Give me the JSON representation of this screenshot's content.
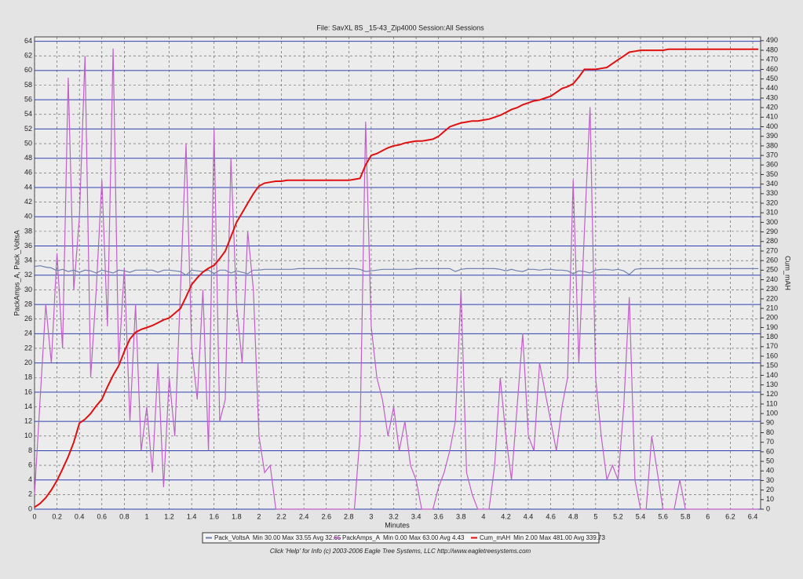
{
  "chart_data": {
    "type": "line",
    "title": "File: SavXL 8S _15-43_Zip4000   Session:All Sessions",
    "x_label": "Minutes",
    "y_label": "PackAmps_A, Pack_VoltsA",
    "y2_label": "Cum_mAH",
    "footer": "Click 'Help' for Info  (c) 2003-2006 Eagle Tree Systems, LLC      http://www.eagletreesystems.com",
    "xlim": [
      0,
      6.47
    ],
    "ylim": [
      0,
      64.6
    ],
    "y2lim": [
      0,
      494
    ],
    "grid": true,
    "xticks": [
      0,
      0.2,
      0.4,
      0.6,
      0.8,
      1,
      1.2,
      1.4,
      1.6,
      1.8,
      2,
      2.2,
      2.4,
      2.6,
      2.8,
      3,
      3.2,
      3.4,
      3.6,
      3.8,
      4,
      4.2,
      4.4,
      4.6,
      4.8,
      5,
      5.2,
      5.4,
      5.6,
      5.8,
      6,
      6.2,
      6.4
    ],
    "yticks": [
      0,
      2,
      4,
      6,
      8,
      10,
      12,
      14,
      16,
      18,
      20,
      22,
      24,
      26,
      28,
      30,
      32,
      34,
      36,
      38,
      40,
      42,
      44,
      46,
      48,
      50,
      52,
      54,
      56,
      58,
      60,
      62,
      64
    ],
    "y2ticks": [
      0,
      10,
      20,
      30,
      40,
      50,
      60,
      70,
      80,
      90,
      100,
      110,
      120,
      130,
      140,
      150,
      160,
      170,
      180,
      190,
      200,
      210,
      220,
      230,
      240,
      250,
      260,
      270,
      280,
      290,
      300,
      310,
      320,
      330,
      340,
      350,
      360,
      370,
      380,
      390,
      400,
      410,
      420,
      430,
      440,
      450,
      460,
      470,
      480,
      490
    ],
    "x": [
      0,
      0.05,
      0.1,
      0.15,
      0.2,
      0.25,
      0.3,
      0.35,
      0.4,
      0.45,
      0.5,
      0.55,
      0.6,
      0.65,
      0.7,
      0.75,
      0.8,
      0.85,
      0.9,
      0.95,
      1,
      1.05,
      1.1,
      1.15,
      1.2,
      1.25,
      1.3,
      1.35,
      1.4,
      1.45,
      1.5,
      1.55,
      1.6,
      1.65,
      1.7,
      1.75,
      1.8,
      1.85,
      1.9,
      1.95,
      2,
      2.05,
      2.1,
      2.15,
      2.2,
      2.25,
      2.3,
      2.35,
      2.4,
      2.45,
      2.5,
      2.55,
      2.6,
      2.65,
      2.7,
      2.75,
      2.8,
      2.85,
      2.9,
      2.95,
      3,
      3.05,
      3.1,
      3.15,
      3.2,
      3.25,
      3.3,
      3.35,
      3.4,
      3.45,
      3.5,
      3.55,
      3.6,
      3.65,
      3.7,
      3.75,
      3.8,
      3.85,
      3.9,
      3.95,
      4,
      4.05,
      4.1,
      4.15,
      4.2,
      4.25,
      4.3,
      4.35,
      4.4,
      4.45,
      4.5,
      4.55,
      4.6,
      4.65,
      4.7,
      4.75,
      4.8,
      4.85,
      4.9,
      4.95,
      5,
      5.05,
      5.1,
      5.15,
      5.2,
      5.25,
      5.3,
      5.35,
      5.4,
      5.45,
      5.5,
      5.55,
      5.6,
      5.65,
      5.7,
      5.75,
      5.8,
      5.85,
      5.9,
      5.95,
      6,
      6.05,
      6.1,
      6.15,
      6.2,
      6.25,
      6.3,
      6.35,
      6.4,
      6.45
    ],
    "series": [
      {
        "name": "Pack_VoltsA",
        "stats": "Min 30.00 Max 33.55 Avg 32.65",
        "color": "#7080b0",
        "axis": "y",
        "values": [
          33.2,
          33.3,
          33.1,
          33.0,
          32.6,
          32.8,
          32.5,
          32.7,
          32.4,
          32.7,
          32.6,
          32.3,
          32.7,
          32.5,
          32.3,
          32.7,
          32.6,
          32.4,
          32.7,
          32.7,
          32.7,
          32.7,
          32.4,
          32.7,
          32.7,
          32.6,
          32.5,
          32.0,
          32.7,
          32.6,
          32.5,
          32.7,
          32.2,
          32.7,
          32.7,
          32.3,
          32.6,
          32.4,
          32.2,
          32.7,
          32.7,
          32.8,
          32.8,
          32.8,
          32.8,
          32.8,
          32.8,
          32.9,
          32.9,
          32.9,
          32.9,
          32.9,
          32.9,
          32.9,
          32.9,
          32.9,
          32.9,
          32.9,
          32.8,
          32.5,
          32.6,
          32.7,
          32.8,
          32.8,
          32.8,
          32.8,
          32.8,
          32.8,
          32.9,
          32.9,
          32.9,
          32.9,
          32.9,
          32.9,
          32.9,
          32.5,
          32.8,
          32.9,
          32.9,
          32.9,
          32.9,
          32.9,
          32.9,
          32.8,
          32.6,
          32.8,
          32.6,
          32.5,
          32.8,
          32.8,
          32.7,
          32.8,
          32.8,
          32.7,
          32.7,
          32.6,
          32.2,
          32.6,
          32.5,
          32.3,
          32.7,
          32.8,
          32.8,
          32.7,
          32.8,
          32.6,
          32.1,
          32.8,
          32.9,
          32.9,
          32.9,
          32.9,
          32.9,
          32.9,
          32.9,
          32.9,
          32.9,
          32.9,
          32.9,
          32.9,
          32.9,
          32.9,
          32.9,
          32.9,
          32.9,
          32.9,
          32.9,
          32.9,
          32.9,
          32.9
        ]
      },
      {
        "name": "PackAmps_A",
        "stats": "Min 0.00 Max 63.00 Avg 4.43",
        "color": "#c060c8",
        "axis": "y",
        "values": [
          2,
          15,
          28,
          20,
          35,
          22,
          59,
          30,
          40,
          62,
          18,
          30,
          45,
          25,
          63,
          20,
          33,
          12,
          28,
          8,
          14,
          5,
          20,
          3,
          18,
          10,
          30,
          50,
          22,
          15,
          30,
          8,
          52,
          12,
          15,
          48,
          28,
          20,
          38,
          30,
          10,
          5,
          6,
          0,
          0,
          0,
          0,
          0,
          0,
          0,
          0,
          0,
          0,
          0,
          0,
          0,
          0,
          0,
          10,
          53,
          25,
          18,
          15,
          10,
          14,
          8,
          12,
          6,
          4,
          0,
          0,
          0,
          3,
          5,
          8,
          12,
          30,
          5,
          2,
          0,
          0,
          0,
          6,
          18,
          10,
          4,
          14,
          24,
          10,
          8,
          20,
          16,
          12,
          8,
          14,
          18,
          45,
          20,
          38,
          55,
          18,
          10,
          4,
          6,
          4,
          14,
          29,
          4,
          0,
          0,
          10,
          5,
          0,
          0,
          0,
          4,
          0,
          0,
          0,
          0,
          0,
          0,
          0,
          0,
          0,
          0,
          0,
          0,
          0,
          0
        ]
      },
      {
        "name": "Cum_mAH",
        "stats": "Min 2.00 Max 481.00 Avg 339.73",
        "color": "#e01010",
        "axis": "y2",
        "values": [
          2,
          6,
          12,
          20,
          30,
          42,
          55,
          70,
          90,
          94,
          100,
          108,
          115,
          128,
          140,
          150,
          165,
          178,
          185,
          188,
          190,
          192,
          195,
          198,
          200,
          205,
          210,
          222,
          235,
          242,
          248,
          252,
          255,
          262,
          270,
          285,
          300,
          310,
          320,
          330,
          338,
          341,
          342,
          343,
          343,
          344,
          344,
          344,
          344,
          344,
          344,
          344,
          344,
          344,
          344,
          344,
          344,
          345,
          346,
          360,
          370,
          372,
          375,
          378,
          380,
          381,
          383,
          384,
          385,
          385,
          386,
          387,
          390,
          395,
          400,
          402,
          404,
          405,
          406,
          406,
          407,
          408,
          410,
          412,
          415,
          418,
          420,
          423,
          425,
          427,
          428,
          430,
          432,
          436,
          440,
          442,
          445,
          452,
          460,
          460,
          460,
          461,
          462,
          466,
          470,
          474,
          478,
          479,
          480,
          480,
          480,
          480,
          480,
          481,
          481,
          481,
          481,
          481,
          481,
          481,
          481,
          481,
          481,
          481,
          481,
          481,
          481,
          481,
          481,
          481
        ]
      }
    ]
  }
}
